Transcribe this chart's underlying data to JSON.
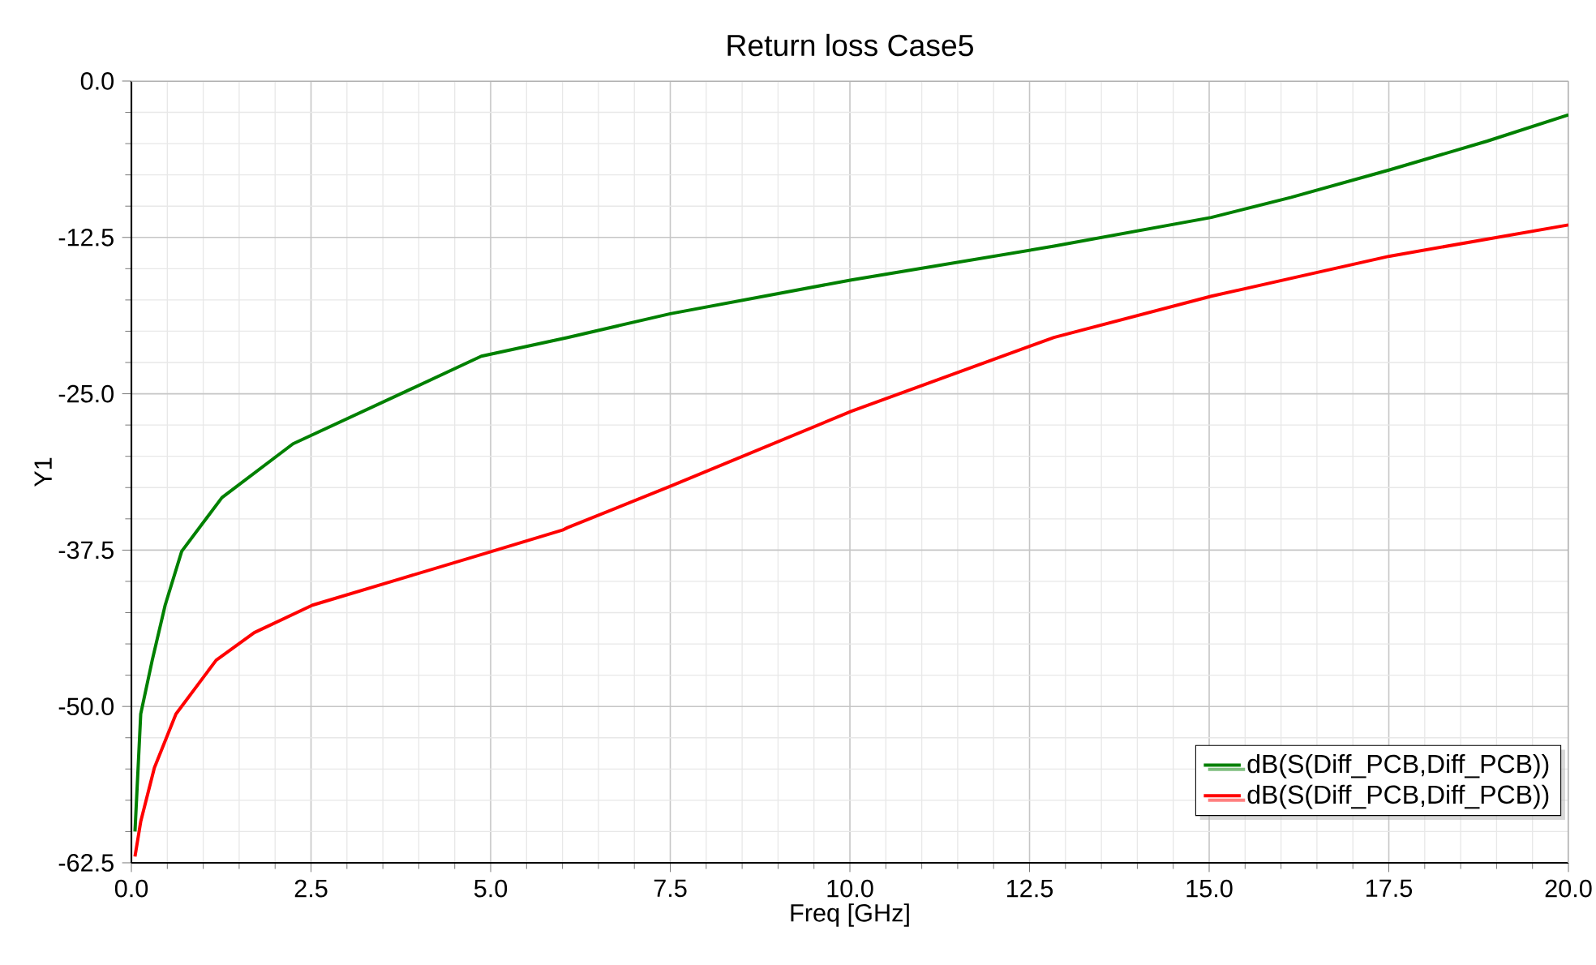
{
  "chart_data": {
    "type": "line",
    "title": "Return loss Case5",
    "xlabel": "Freq [GHz]",
    "ylabel": "Y1",
    "xlim": [
      0,
      20
    ],
    "ylim": [
      -62.5,
      0
    ],
    "xticks": [
      {
        "value": 0,
        "label": "0.0"
      },
      {
        "value": 2.5,
        "label": "2.5"
      },
      {
        "value": 5,
        "label": "5.0"
      },
      {
        "value": 7.5,
        "label": "7.5"
      },
      {
        "value": 10,
        "label": "10.0"
      },
      {
        "value": 12.5,
        "label": "12.5"
      },
      {
        "value": 15,
        "label": "15.0"
      },
      {
        "value": 17.5,
        "label": "17.5"
      },
      {
        "value": 20,
        "label": "20.0"
      }
    ],
    "yticks": [
      {
        "value": -62.5,
        "label": "-62.5"
      },
      {
        "value": -50,
        "label": "-50.0"
      },
      {
        "value": -37.5,
        "label": "-37.5"
      },
      {
        "value": -25,
        "label": "-25.0"
      },
      {
        "value": -12.5,
        "label": "-12.5"
      },
      {
        "value": 0,
        "label": "0.0"
      }
    ],
    "grid": true,
    "legend": "bottom right",
    "marker": "none",
    "line_style": "solid",
    "series": [
      {
        "name": "dB(S(Diff_PCB,Diff_PCB))",
        "color": "#008000",
        "x": [
          0.05,
          0.13,
          0.29,
          0.47,
          0.7,
          1.26,
          2.25,
          3.9,
          4.87,
          6.07,
          7.5,
          10.02,
          12.84,
          15.03,
          16.14,
          17.51,
          18.87,
          20
        ],
        "values": [
          -60.0,
          -50.6,
          -46.3,
          -41.9,
          -37.6,
          -33.3,
          -29.0,
          -24.6,
          -22.0,
          -20.5,
          -18.6,
          -15.9,
          -13.2,
          -10.9,
          -9.3,
          -7.1,
          -4.8,
          -2.7
        ]
      },
      {
        "name": "dB(S(Diff_PCB,Diff_PCB))",
        "color": "#ff0000",
        "x": [
          0.05,
          0.13,
          0.32,
          0.62,
          1.18,
          1.71,
          2.52,
          3.74,
          5.02,
          6.0,
          6.07,
          7.5,
          10.02,
          12.84,
          15.03,
          17.51,
          20
        ],
        "values": [
          -62.0,
          -59.2,
          -54.9,
          -50.6,
          -46.3,
          -44.1,
          -41.9,
          -39.8,
          -37.6,
          -35.9,
          -35.7,
          -32.4,
          -26.4,
          -20.5,
          -17.2,
          -14.0,
          -11.5
        ]
      }
    ]
  }
}
